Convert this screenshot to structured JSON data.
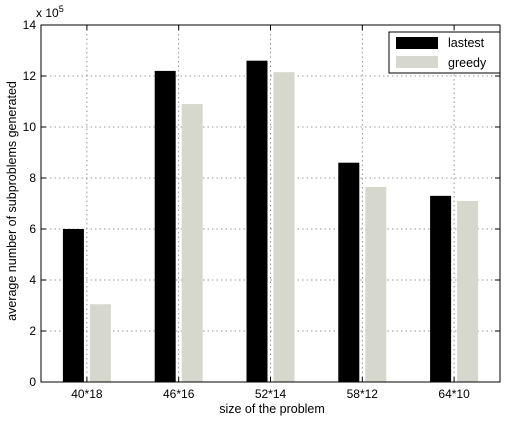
{
  "chart_data": {
    "type": "bar",
    "categories": [
      "40*18",
      "46*16",
      "52*14",
      "58*12",
      "64*10"
    ],
    "series": [
      {
        "name": "lastest",
        "values": [
          6.0,
          12.2,
          12.6,
          8.6,
          7.3
        ],
        "color": "#000000"
      },
      {
        "name": "greedy",
        "values": [
          3.05,
          10.9,
          12.15,
          7.65,
          7.1
        ],
        "color": "#d6d8ce"
      }
    ],
    "xlabel": "size of the problem",
    "ylabel": "average number of subproblems generated",
    "ylim": [
      0,
      14
    ],
    "yticks": [
      0,
      2,
      4,
      6,
      8,
      10,
      12,
      14
    ],
    "ytick_labels": [
      "0",
      "2",
      "4",
      "6",
      "8",
      "10",
      "12",
      "14"
    ],
    "y_multiplier_base": "x 10",
    "y_multiplier_exponent": "5",
    "grid": true,
    "legend_position": "top-right"
  }
}
